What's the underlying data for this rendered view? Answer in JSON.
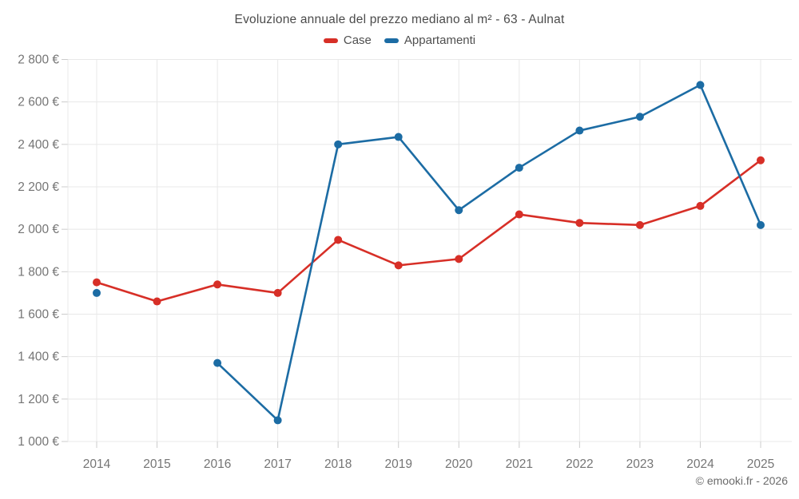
{
  "footer": {
    "copyright": "© emooki.fr - 2026"
  },
  "chart_data": {
    "type": "line",
    "title": "Evoluzione annuale del prezzo mediano al m² - 63 - Aulnat",
    "categories": [
      "2014",
      "2015",
      "2016",
      "2017",
      "2018",
      "2019",
      "2020",
      "2021",
      "2022",
      "2023",
      "2024",
      "2025"
    ],
    "series": [
      {
        "name": "Case",
        "color": "#d72f27",
        "values": [
          1750,
          1660,
          1740,
          1700,
          1950,
          1830,
          1860,
          2070,
          2030,
          2020,
          2110,
          2325
        ]
      },
      {
        "name": "Appartamenti",
        "color": "#1c6ca4",
        "values": [
          1700,
          null,
          1370,
          1100,
          2400,
          2435,
          2090,
          2290,
          2465,
          2530,
          2680,
          2020
        ]
      }
    ],
    "ylim": [
      1000,
      2800
    ],
    "yticks": [
      1000,
      1200,
      1400,
      1600,
      1800,
      2000,
      2200,
      2400,
      2600,
      2800
    ],
    "ytick_labels": [
      "1 000 €",
      "1 200 €",
      "1 400 €",
      "1 600 €",
      "1 800 €",
      "2 000 €",
      "2 200 €",
      "2 400 €",
      "2 600 €",
      "2 800 €"
    ],
    "grid": true,
    "legend_position": "top"
  }
}
